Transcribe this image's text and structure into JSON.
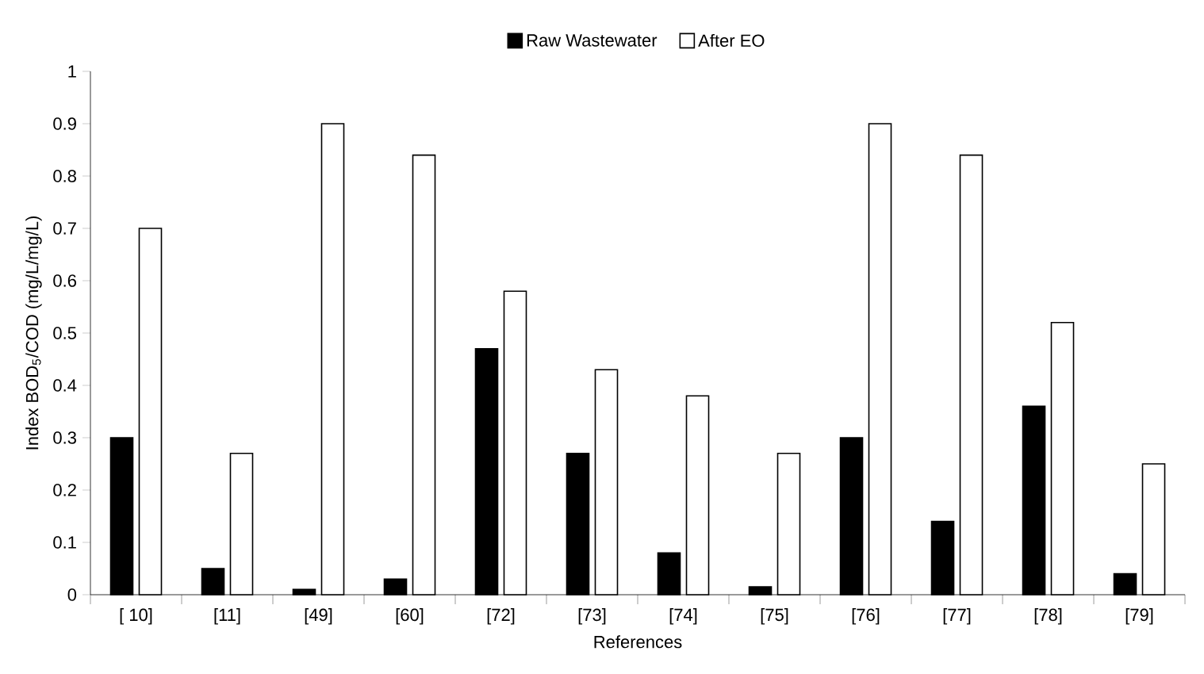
{
  "chart_data": {
    "type": "bar",
    "xlabel": "References",
    "ylabel": "Index BOD$_{5}$/COD (mg/L/mg/L)",
    "categories": [
      "[ 10]",
      "[11]",
      "[49]",
      "[60]",
      "[72]",
      "[73]",
      "[74]",
      "[75]",
      "[76]",
      "[77]",
      "[78]",
      "[79]"
    ],
    "series": [
      {
        "name": "Raw Wastewater",
        "color": "#000000",
        "values": [
          0.3,
          0.05,
          0.01,
          0.03,
          0.47,
          0.27,
          0.08,
          0.015,
          0.3,
          0.14,
          0.36,
          0.04
        ]
      },
      {
        "name": "After EO",
        "color": "#ffffff",
        "values": [
          0.7,
          0.27,
          0.9,
          0.84,
          0.58,
          0.43,
          0.38,
          0.27,
          0.9,
          0.84,
          0.52,
          0.25
        ]
      }
    ],
    "ylim": [
      0,
      1
    ],
    "yticks": [
      0,
      0.1,
      0.2,
      0.3,
      0.4,
      0.5,
      0.6,
      0.7,
      0.8,
      0.9,
      1
    ],
    "grid": false,
    "legend": "top"
  }
}
